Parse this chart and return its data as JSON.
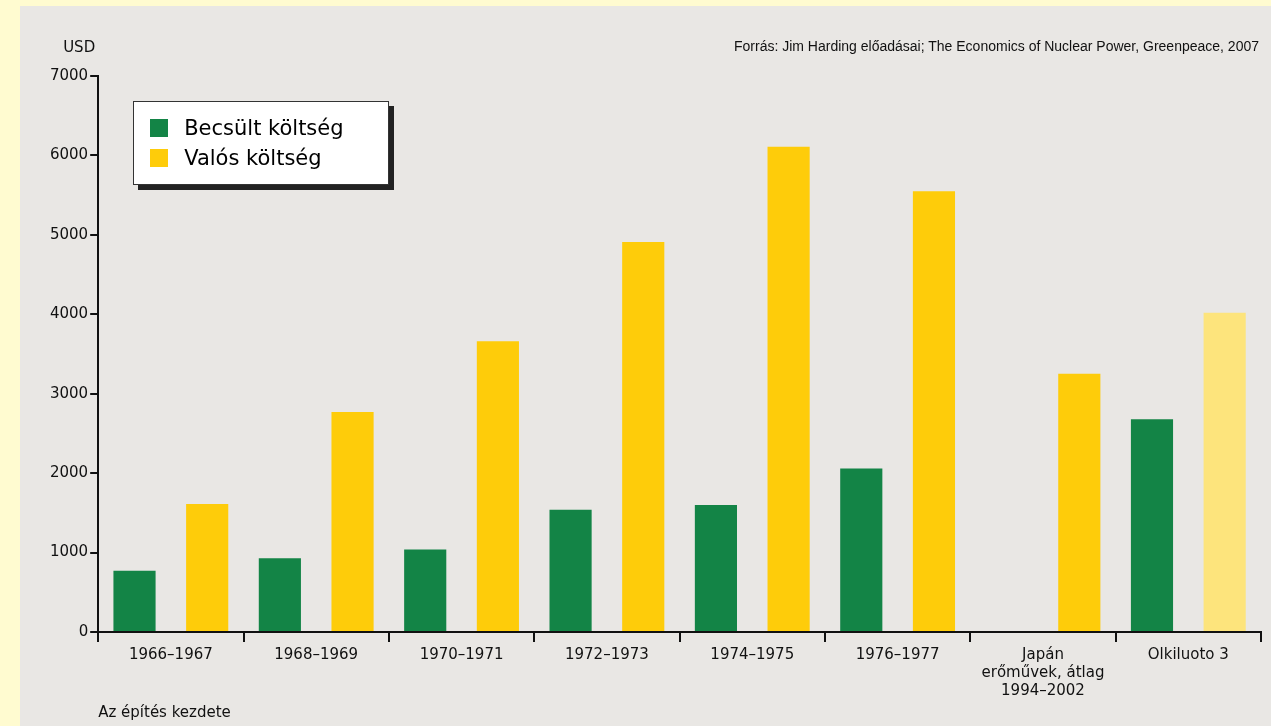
{
  "chart_data": {
    "type": "bar",
    "ylabel": "USD",
    "xlabel": "Az építés kezdete",
    "annotations": [
      "Forrás: Jim Harding előadásai; The Economics of Nuclear Power, Greenpeace, 2007"
    ],
    "categories": [
      "1966–1967",
      "1968–1969",
      "1970–1971",
      "1972–1973",
      "1974–1975",
      "1976–1977",
      "Japán\nerőművek, átlag\n1994–2002",
      "Olkiluoto 3"
    ],
    "series": [
      {
        "name": "Becsült költség",
        "color": "#138446",
        "values": [
          770,
          930,
          1040,
          1540,
          1600,
          2060,
          null,
          2680
        ]
      },
      {
        "name": "Valós költség",
        "color": "#fecc0a",
        "colors": [
          "#fecc0a",
          "#fecc0a",
          "#fecc0a",
          "#fecc0a",
          "#fecc0a",
          "#fecc0a",
          "#fecc0a",
          "#fde47c"
        ],
        "values": [
          1610,
          2770,
          3660,
          4910,
          6110,
          5550,
          3250,
          4020
        ]
      }
    ],
    "ylim": [
      0,
      7000
    ],
    "yticks": [
      0,
      1000,
      2000,
      3000,
      4000,
      5000,
      6000,
      7000
    ],
    "grid": false,
    "legend": "top left"
  }
}
